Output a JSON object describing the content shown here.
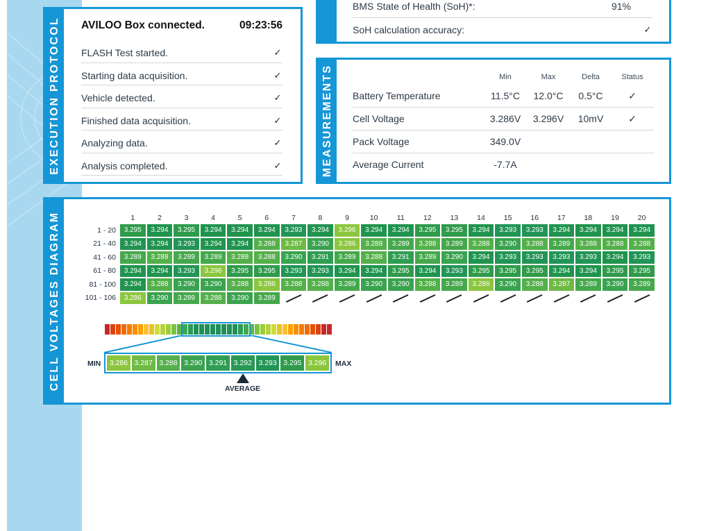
{
  "execution": {
    "title": "EXECUTION PROTOCOL",
    "header_text": "AVILOO Box connected.",
    "header_time": "09:23:56",
    "steps": [
      {
        "label": "FLASH Test started.",
        "check": "✓"
      },
      {
        "label": "Starting data acquisition.",
        "check": "✓"
      },
      {
        "label": "Vehicle detected.",
        "check": "✓"
      },
      {
        "label": "Finished data acquisition.",
        "check": "✓"
      },
      {
        "label": "Analyzing data.",
        "check": "✓"
      },
      {
        "label": "Analysis completed.",
        "check": "✓"
      }
    ]
  },
  "soh": {
    "rows": [
      {
        "label": "BMS State of Health (SoH)*:",
        "value": "91%"
      },
      {
        "label": "SoH calculation accuracy:",
        "value": "✓"
      }
    ]
  },
  "measurements": {
    "title": "MEASUREMENTS",
    "headers": {
      "min": "Min",
      "max": "Max",
      "delta": "Delta",
      "status": "Status"
    },
    "rows": [
      {
        "label": "Battery Temperature",
        "min": "11.5°C",
        "max": "12.0°C",
        "delta": "0.5°C",
        "status": "✓"
      },
      {
        "label": "Cell Voltage",
        "min": "3.286V",
        "max": "3.296V",
        "delta": "10mV",
        "status": "✓"
      },
      {
        "label": "Pack Voltage",
        "min": "349.0V",
        "max": "",
        "delta": "",
        "status": ""
      },
      {
        "label": "Average Current",
        "min": "-7.7A",
        "max": "",
        "delta": "",
        "status": ""
      }
    ]
  },
  "cells": {
    "title": "CELL VOLTAGES DIAGRAM",
    "col_headers": [
      "1",
      "2",
      "3",
      "4",
      "5",
      "6",
      "7",
      "8",
      "9",
      "10",
      "11",
      "12",
      "13",
      "14",
      "15",
      "16",
      "17",
      "18",
      "19",
      "20"
    ],
    "rows": [
      {
        "label": "1 - 20",
        "values": [
          "3.295",
          "3.294",
          "3.295",
          "3.294",
          "3.294",
          "3.294",
          "3.293",
          "3.294",
          "3.296",
          "3.294",
          "3.294",
          "3.295",
          "3.295",
          "3.294",
          "3.293",
          "3.293",
          "3.294",
          "3.294",
          "3.294",
          "3.294"
        ]
      },
      {
        "label": "21 - 40",
        "values": [
          "3.294",
          "3.294",
          "3.293",
          "3.294",
          "3.294",
          "3.288",
          "3.287",
          "3.290",
          "3.286",
          "3.288",
          "3.289",
          "3.288",
          "3.289",
          "3.288",
          "3.290",
          "3.288",
          "3.289",
          "3.288",
          "3.288",
          "3.288"
        ]
      },
      {
        "label": "41 - 60",
        "values": [
          "3.289",
          "3.288",
          "3.289",
          "3.289",
          "3.288",
          "3.288",
          "3.290",
          "3.291",
          "3.289",
          "3.288",
          "3.291",
          "3.289",
          "3.290",
          "3.294",
          "3.293",
          "3.293",
          "3.293",
          "3.293",
          "3.294",
          "3.293"
        ]
      },
      {
        "label": "61 - 80",
        "values": [
          "3.294",
          "3.294",
          "3.293",
          "3.296",
          "3.295",
          "3.295",
          "3.293",
          "3.293",
          "3.294",
          "3.294",
          "3.295",
          "3.294",
          "3.293",
          "3.295",
          "3.295",
          "3.295",
          "3.294",
          "3.294",
          "3.295",
          "3.295"
        ]
      },
      {
        "label": "81 - 100",
        "values": [
          "3.294",
          "3.288",
          "3.290",
          "3.290",
          "3.288",
          "3.286",
          "3.288",
          "3.288",
          "3.289",
          "3.290",
          "3.290",
          "3.288",
          "3.289",
          "3.286",
          "3.290",
          "3.288",
          "3.287",
          "3.289",
          "3.290",
          "3.289"
        ]
      },
      {
        "label": "101 - 106",
        "values": [
          "3.286",
          "3.290",
          "3.289",
          "3.288",
          "3.290",
          "3.289"
        ]
      }
    ],
    "scale_values": [
      "3.286",
      "3.287",
      "3.288",
      "3.290",
      "3.291",
      "3.292",
      "3.293",
      "3.295",
      "3.296"
    ],
    "min_label": "MIN",
    "max_label": "MAX",
    "average_label": "AVERAGE",
    "colors": {
      "3.286": "#8cc63f",
      "3.287": "#6fba45",
      "3.288": "#54b04a",
      "3.289": "#45a84c",
      "3.290": "#3aa34f",
      "3.291": "#2f9d52",
      "3.292": "#289954",
      "3.293": "#229556",
      "3.294": "#20944f",
      "3.295": "#2f9b4b",
      "3.296": "#8cc63f"
    },
    "gradient_colors": [
      "#c62828",
      "#d84315",
      "#e65100",
      "#ef6c00",
      "#f57c00",
      "#fb8c00",
      "#ffa000",
      "#fbc02d",
      "#e6c229",
      "#cddc39",
      "#b5d334",
      "#9ccc3a",
      "#7cc242",
      "#5cb449",
      "#3ea84f",
      "#2a9b55",
      "#1f8f5a",
      "#1f8f5a",
      "#1f8f5a",
      "#1f8f5a",
      "#1f8f5a",
      "#1f8f5a",
      "#1f8f5a",
      "#1f8f5a",
      "#2a9b55",
      "#3ea84f",
      "#5cb449",
      "#7cc242",
      "#9ccc3a",
      "#b5d334",
      "#cddc39",
      "#e6c229",
      "#fbc02d",
      "#ffa000",
      "#fb8c00",
      "#f57c00",
      "#ef6c00",
      "#e65100",
      "#d84315",
      "#c62828",
      "#c62828"
    ]
  }
}
